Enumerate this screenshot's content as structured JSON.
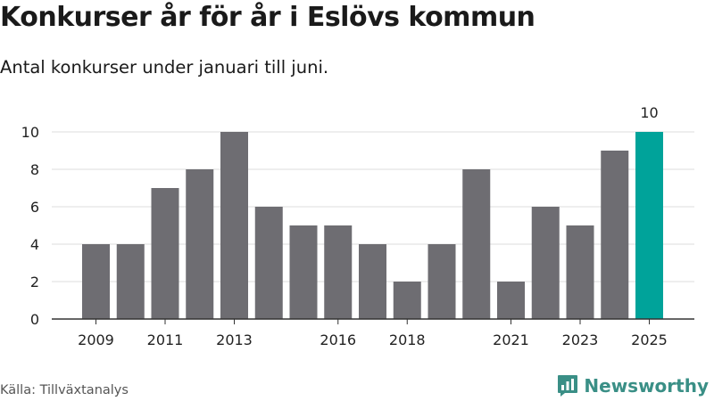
{
  "title": "Konkurser år för år i Eslövs kommun",
  "subtitle": "Antal konkurser under januari till juni.",
  "source": "Källa: Tillväxtanalys",
  "brand": {
    "name": "Newsworthy",
    "icon": "bar-chart-logo-icon",
    "color": "#3a8f86"
  },
  "colors": {
    "bar": "#6e6d72",
    "highlight": "#00a39a",
    "grid": "#dddddd",
    "axis": "#333333"
  },
  "chart_data": {
    "type": "bar",
    "categories": [
      "2009",
      "2010",
      "2011",
      "2012",
      "2013",
      "2014",
      "2015",
      "2016",
      "2017",
      "2018",
      "2019",
      "2020",
      "2021",
      "2022",
      "2023",
      "2024",
      "2025"
    ],
    "values": [
      4,
      4,
      7,
      8,
      10,
      6,
      5,
      5,
      4,
      2,
      4,
      8,
      2,
      6,
      5,
      9,
      10
    ],
    "x_tick_labels": [
      "2009",
      "2011",
      "2013",
      "2016",
      "2018",
      "2021",
      "2023",
      "2025"
    ],
    "y_ticks": [
      0,
      2,
      4,
      6,
      8,
      10
    ],
    "ylim": [
      0,
      10
    ],
    "highlight": {
      "category": "2025",
      "label": "10"
    },
    "grid": true,
    "xlabel": "",
    "ylabel": ""
  }
}
